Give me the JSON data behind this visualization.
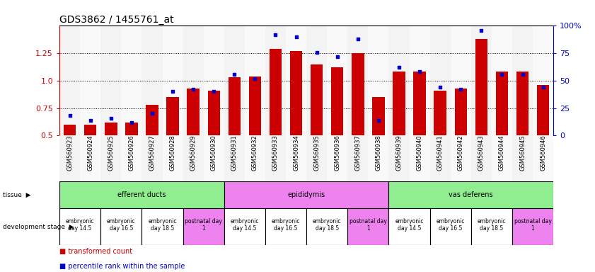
{
  "title": "GDS3862 / 1455761_at",
  "samples": [
    "GSM560923",
    "GSM560924",
    "GSM560925",
    "GSM560926",
    "GSM560927",
    "GSM560928",
    "GSM560929",
    "GSM560930",
    "GSM560931",
    "GSM560932",
    "GSM560933",
    "GSM560934",
    "GSM560935",
    "GSM560936",
    "GSM560937",
    "GSM560938",
    "GSM560939",
    "GSM560940",
    "GSM560941",
    "GSM560942",
    "GSM560943",
    "GSM560944",
    "GSM560945",
    "GSM560946"
  ],
  "red_values": [
    0.6,
    0.6,
    0.62,
    0.62,
    0.78,
    0.85,
    0.93,
    0.91,
    1.03,
    1.04,
    1.29,
    1.27,
    1.15,
    1.12,
    1.25,
    0.85,
    1.08,
    1.08,
    0.91,
    0.93,
    1.38,
    1.08,
    1.08,
    0.96
  ],
  "blue_values_pct": [
    18,
    14,
    16,
    12,
    20,
    40,
    42,
    40,
    56,
    52,
    92,
    90,
    76,
    72,
    88,
    14,
    62,
    58,
    44,
    42,
    96,
    56,
    56,
    44
  ],
  "tissues": [
    {
      "label": "efferent ducts",
      "start": 0,
      "end": 7
    },
    {
      "label": "epididymis",
      "start": 8,
      "end": 15
    },
    {
      "label": "vas deferens",
      "start": 16,
      "end": 23
    }
  ],
  "tissue_colors": {
    "efferent ducts": "#90EE90",
    "epididymis": "#EE82EE",
    "vas deferens": "#90EE90"
  },
  "dev_stages": [
    {
      "label": "embryonic\nday 14.5",
      "start": 0,
      "end": 1
    },
    {
      "label": "embryonic\nday 16.5",
      "start": 2,
      "end": 3
    },
    {
      "label": "embryonic\nday 18.5",
      "start": 4,
      "end": 5
    },
    {
      "label": "postnatal day\n1",
      "start": 6,
      "end": 7
    },
    {
      "label": "embryonic\nday 14.5",
      "start": 8,
      "end": 9
    },
    {
      "label": "embryonic\nday 16.5",
      "start": 10,
      "end": 11
    },
    {
      "label": "embryonic\nday 18.5",
      "start": 12,
      "end": 13
    },
    {
      "label": "postnatal day\n1",
      "start": 14,
      "end": 15
    },
    {
      "label": "embryonic\nday 14.5",
      "start": 16,
      "end": 17
    },
    {
      "label": "embryonic\nday 16.5",
      "start": 18,
      "end": 19
    },
    {
      "label": "embryonic\nday 18.5",
      "start": 20,
      "end": 21
    },
    {
      "label": "postnatal day\n1",
      "start": 22,
      "end": 23
    }
  ],
  "stage_colors": {
    "embryonic\nday 14.5": "#FFFFFF",
    "embryonic\nday 16.5": "#FFFFFF",
    "embryonic\nday 18.5": "#FFFFFF",
    "postnatal day\n1": "#EE82EE"
  },
  "ylim": [
    0.5,
    1.5
  ],
  "yticks_left": [
    0.5,
    0.75,
    1.0,
    1.25
  ],
  "yticks_right": [
    0,
    25,
    50,
    75,
    100
  ],
  "bar_color": "#CC0000",
  "dot_color": "#0000CC",
  "background_color": "#FFFFFF",
  "title_fontsize": 10,
  "sample_fontsize": 6,
  "annot_fontsize": 7,
  "legend_fontsize": 7
}
